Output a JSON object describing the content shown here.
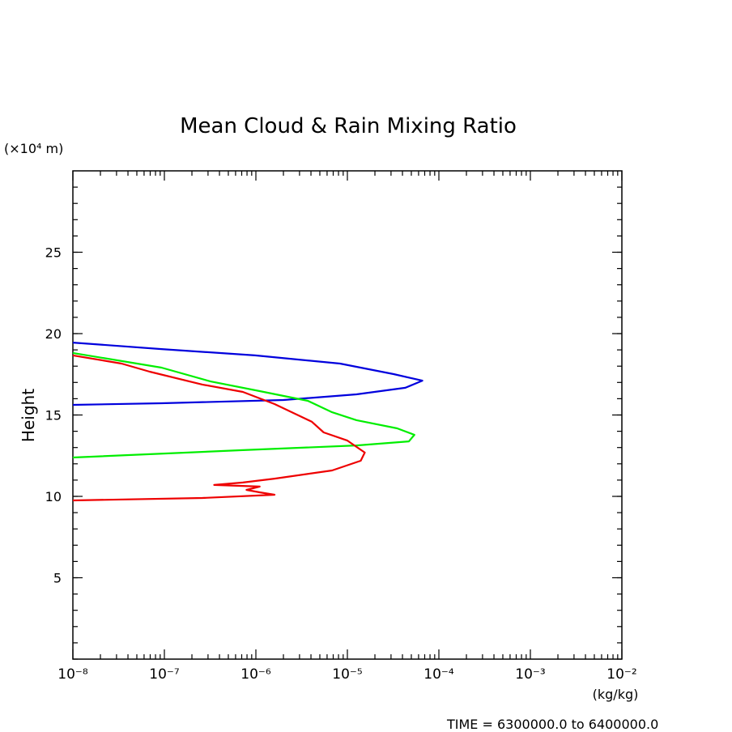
{
  "chart_data": {
    "type": "line",
    "title": "Mean Cloud & Rain Mixing Ratio",
    "y_label": "Height",
    "y_units": "(×10⁴ m)",
    "x_units": "(kg/kg)",
    "footer": "TIME = 6300000.0 to 6400000.0",
    "xscale": "log",
    "xlim": [
      1e-08,
      0.01
    ],
    "ylim": [
      0,
      30
    ],
    "xticks": [
      {
        "value": 1e-08,
        "label": "10⁻⁸"
      },
      {
        "value": 1e-07,
        "label": "10⁻⁷"
      },
      {
        "value": 1e-06,
        "label": "10⁻⁶"
      },
      {
        "value": 1e-05,
        "label": "10⁻⁵"
      },
      {
        "value": 0.0001,
        "label": "10⁻⁴"
      },
      {
        "value": 0.001,
        "label": "10⁻³"
      },
      {
        "value": 0.01,
        "label": "10⁻²"
      }
    ],
    "yticks": [
      5,
      10,
      15,
      20,
      25
    ],
    "series": [
      {
        "color": "#0000dd",
        "x": [
          1e-08,
          9.3e-08,
          9.8e-07,
          8.3e-06,
          3.2e-05,
          6.6e-05,
          4.3e-05,
          1.26e-05,
          2e-06,
          9.3e-08,
          1e-08
        ],
        "values": [
          19.45,
          19.05,
          18.66,
          18.16,
          17.51,
          17.11,
          16.67,
          16.27,
          15.92,
          15.72,
          15.62
        ]
      },
      {
        "color": "#00ee00",
        "x": [
          1e-08,
          9.3e-08,
          3.2e-07,
          1.1e-06,
          3.7e-06,
          6.8e-06,
          1.26e-05,
          3.5e-05,
          5.4e-05,
          4.7e-05,
          1.26e-05,
          7.2e-07,
          1e-08
        ],
        "values": [
          18.81,
          17.91,
          17.06,
          16.47,
          15.87,
          15.17,
          14.68,
          14.18,
          13.78,
          13.38,
          13.13,
          12.84,
          12.39
        ]
      },
      {
        "color": "#ee0000",
        "x": [
          1e-08,
          3.4e-08,
          6.9e-08,
          2.6e-07,
          7.2e-07,
          1.6e-06,
          4.1e-06,
          5.5e-06,
          1e-05,
          1.55e-05,
          1.4e-05,
          6.8e-06,
          1.6e-06,
          7.2e-07,
          3.5e-07,
          1.1e-06,
          7.9e-07,
          1.1e-06,
          1.6e-06,
          2.6e-07,
          1e-08
        ],
        "values": [
          18.66,
          18.16,
          17.66,
          16.87,
          16.42,
          15.67,
          14.58,
          13.93,
          13.43,
          12.69,
          12.19,
          11.59,
          11.09,
          10.85,
          10.7,
          10.6,
          10.4,
          10.25,
          10.1,
          9.9,
          9.75
        ]
      }
    ]
  }
}
